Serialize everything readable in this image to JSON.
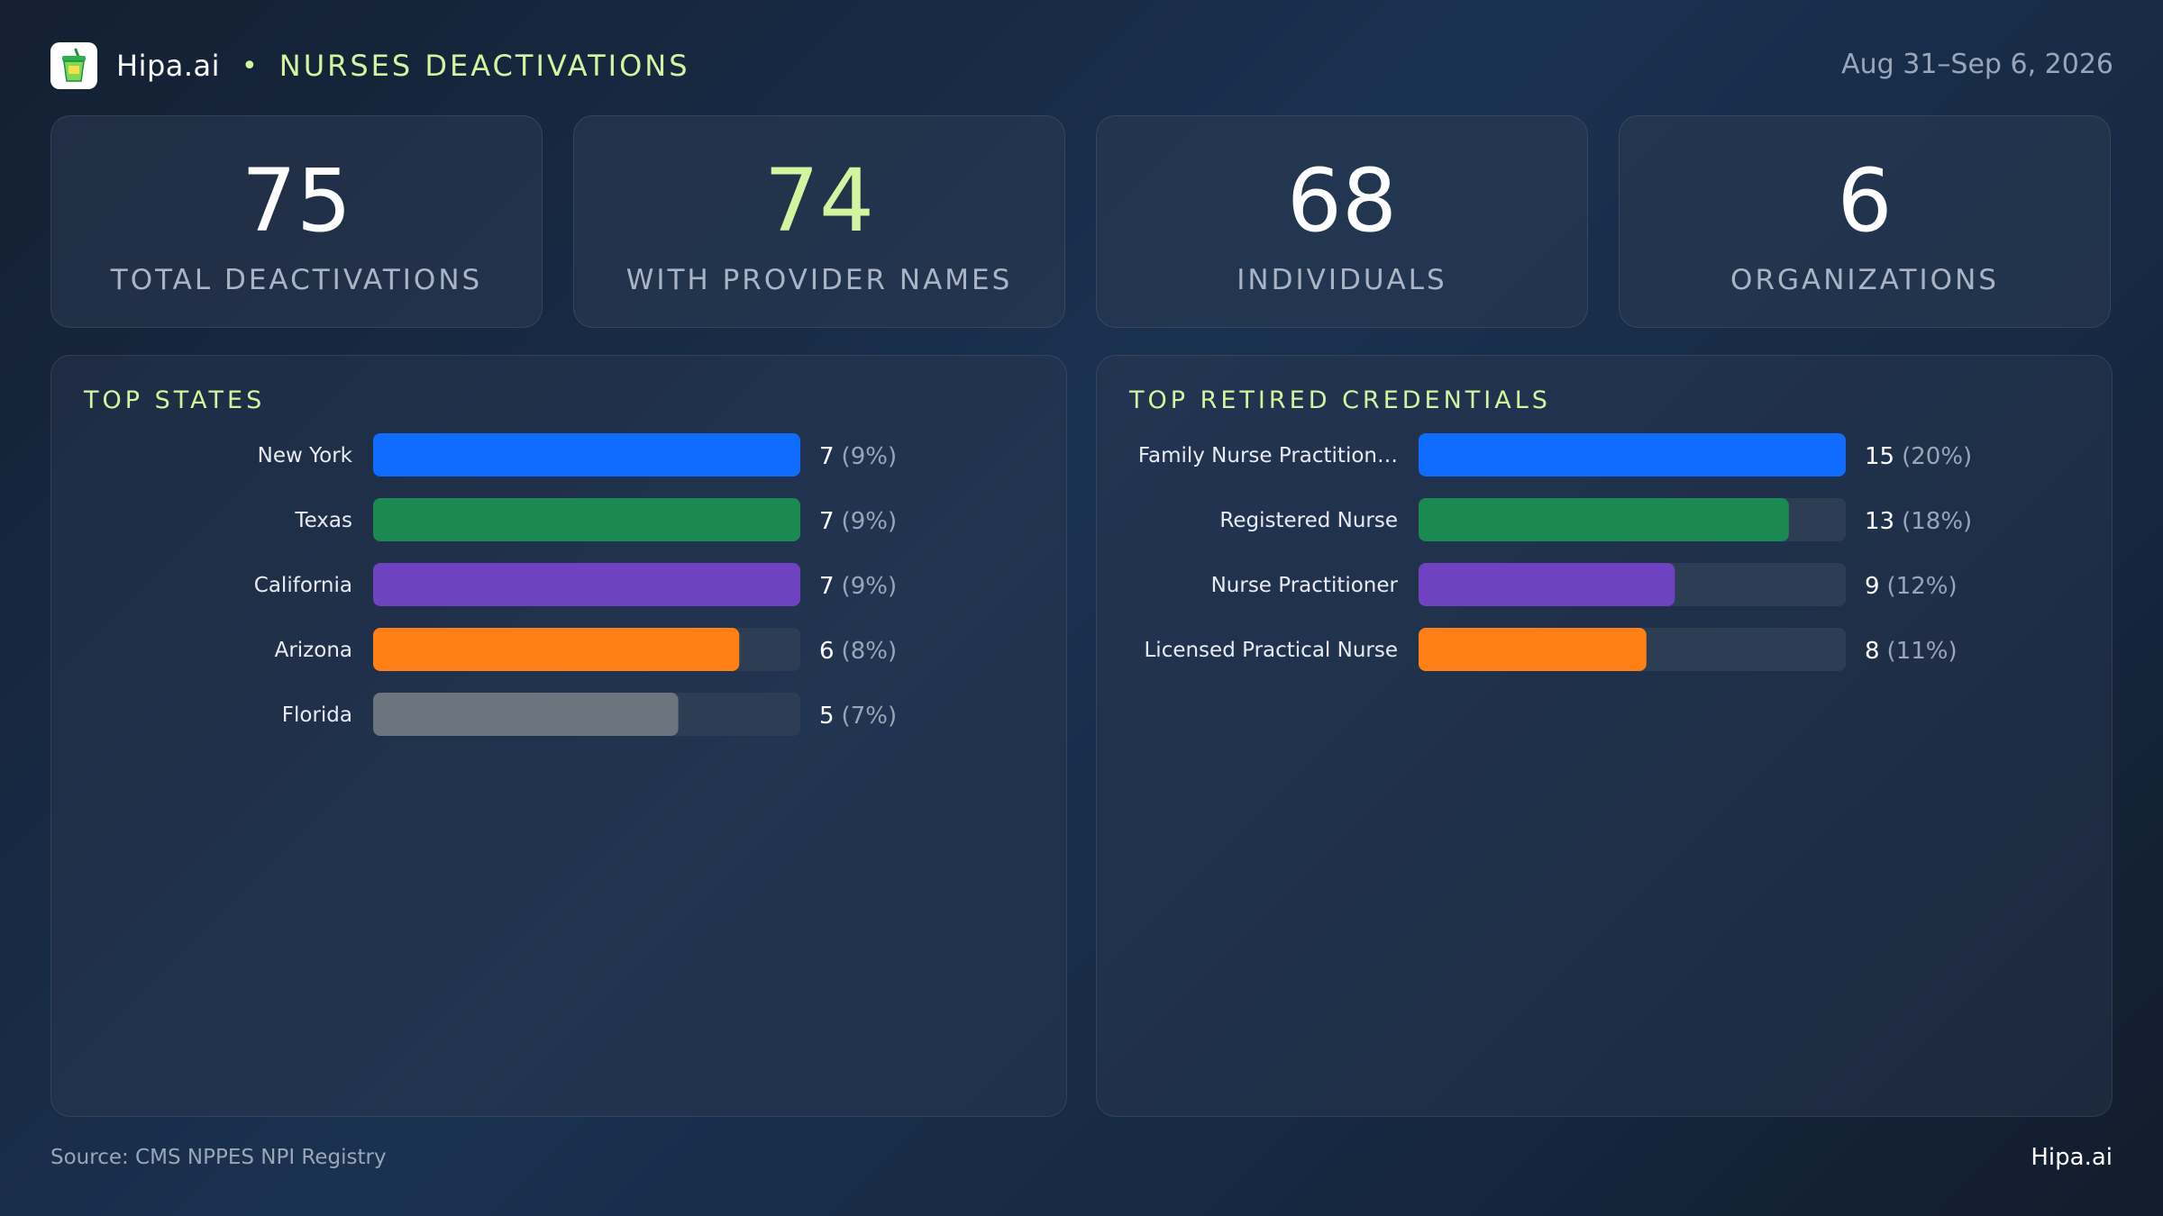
{
  "header": {
    "brand": "Hipa.ai",
    "separator": "•",
    "title": "NURSES DEACTIVATIONS",
    "date_range": "Aug 31–Sep 6, 2026",
    "logo_icon": "cup-icon"
  },
  "stats": [
    {
      "value": "75",
      "label": "TOTAL DEACTIVATIONS"
    },
    {
      "value": "74",
      "label": "WITH PROVIDER NAMES"
    },
    {
      "value": "68",
      "label": "INDIVIDUALS"
    },
    {
      "value": "6",
      "label": "ORGANIZATIONS"
    }
  ],
  "colors": {
    "accent": "#d4f5a0",
    "blue": "#0f6cff",
    "green": "#1b8a52",
    "purple": "#6f42c1",
    "orange": "#ff8016",
    "gray": "#6c757d",
    "track": "#2d3e54"
  },
  "chart_data": [
    {
      "type": "bar",
      "orientation": "horizontal",
      "title": "TOP STATES",
      "categories": [
        "New York",
        "Texas",
        "California",
        "Arizona",
        "Florida"
      ],
      "values": [
        7,
        7,
        7,
        6,
        5
      ],
      "value_labels": [
        "7",
        "7",
        "7",
        "6",
        "5"
      ],
      "percent_labels": [
        "(9%)",
        "(9%)",
        "(9%)",
        "(8%)",
        "(7%)"
      ],
      "colors": [
        "#0f6cff",
        "#1b8a52",
        "#6f42c1",
        "#ff8016",
        "#6c757d"
      ],
      "xlim": [
        0,
        7
      ]
    },
    {
      "type": "bar",
      "orientation": "horizontal",
      "title": "TOP RETIRED CREDENTIALS",
      "categories": [
        "Family Nurse Practition…",
        "Registered Nurse",
        "Nurse Practitioner",
        "Licensed Practical Nurse"
      ],
      "values": [
        15,
        13,
        9,
        8
      ],
      "value_labels": [
        "15",
        "13",
        "9",
        "8"
      ],
      "percent_labels": [
        "(20%)",
        "(18%)",
        "(12%)",
        "(11%)"
      ],
      "colors": [
        "#0f6cff",
        "#1b8a52",
        "#6f42c1",
        "#ff8016"
      ],
      "xlim": [
        0,
        15
      ]
    }
  ],
  "footer": {
    "source": "Source: CMS NPPES NPI Registry",
    "brand": "Hipa.ai"
  }
}
